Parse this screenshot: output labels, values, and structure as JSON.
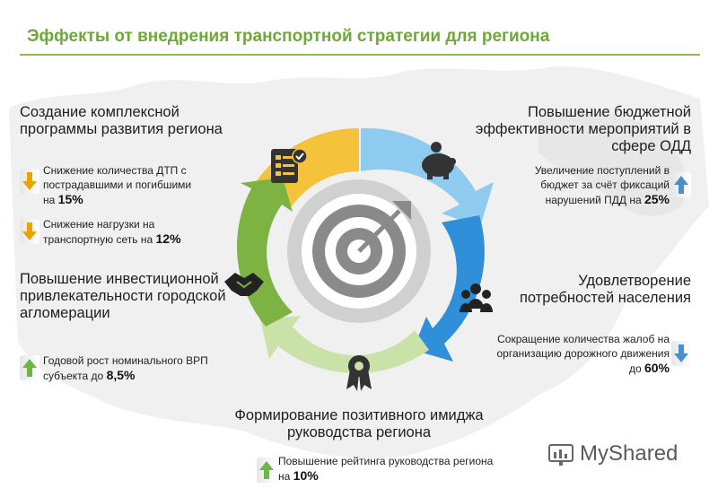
{
  "title": "Эффекты от внедрения транспортной стратегии для региона",
  "effects": [
    {
      "heading": "Создание комплексной программы развития региона",
      "items": [
        {
          "text": "Снижение количества ДТП с пострадавшими и погибшими на",
          "value": "15%",
          "direction": "down"
        },
        {
          "text": "Снижение нагрузки на транспортную сеть на",
          "value": "12%",
          "direction": "down"
        }
      ]
    },
    {
      "heading": "Повышение бюджетной эффективности мероприятий в сфере ОДД",
      "items": [
        {
          "text": "Увеличение поступлений в бюджет за счёт фиксаций нарушений ПДД на",
          "value": "25%",
          "direction": "up"
        }
      ]
    },
    {
      "heading": "Повышение инвестиционной привлекательности городской агломерации",
      "items": [
        {
          "text": "Годовой рост номинального ВРП субъекта до",
          "value": "8,5%",
          "direction": "up"
        }
      ]
    },
    {
      "heading": "Удовлетворение потребностей населения",
      "items": [
        {
          "text": "Сокращение количества жалоб на организацию дорожного движения до",
          "value": "60%",
          "direction": "down"
        }
      ]
    },
    {
      "heading": "Формирование позитивного имиджа руководства региона",
      "items": [
        {
          "text": "Повышение рейтинга руководства региона на",
          "value": "10%",
          "direction": "up"
        }
      ]
    }
  ],
  "cycle_icons": [
    "checklist-icon",
    "piggy-bank-icon",
    "people-group-icon",
    "award-ribbon-icon",
    "handshake-icon",
    "target-icon"
  ],
  "colors": {
    "title": "#6fa83a",
    "segment_yellow": "#f5c33b",
    "segment_light_blue": "#8ecbef",
    "segment_blue": "#2f8fd8",
    "segment_light_green": "#c8e2a8",
    "segment_green": "#7cb342",
    "arrow_down": "#e8a400",
    "arrow_up_green": "#6fb545",
    "arrow_up_blue": "#4a8fd0"
  },
  "watermark": "MyShared"
}
